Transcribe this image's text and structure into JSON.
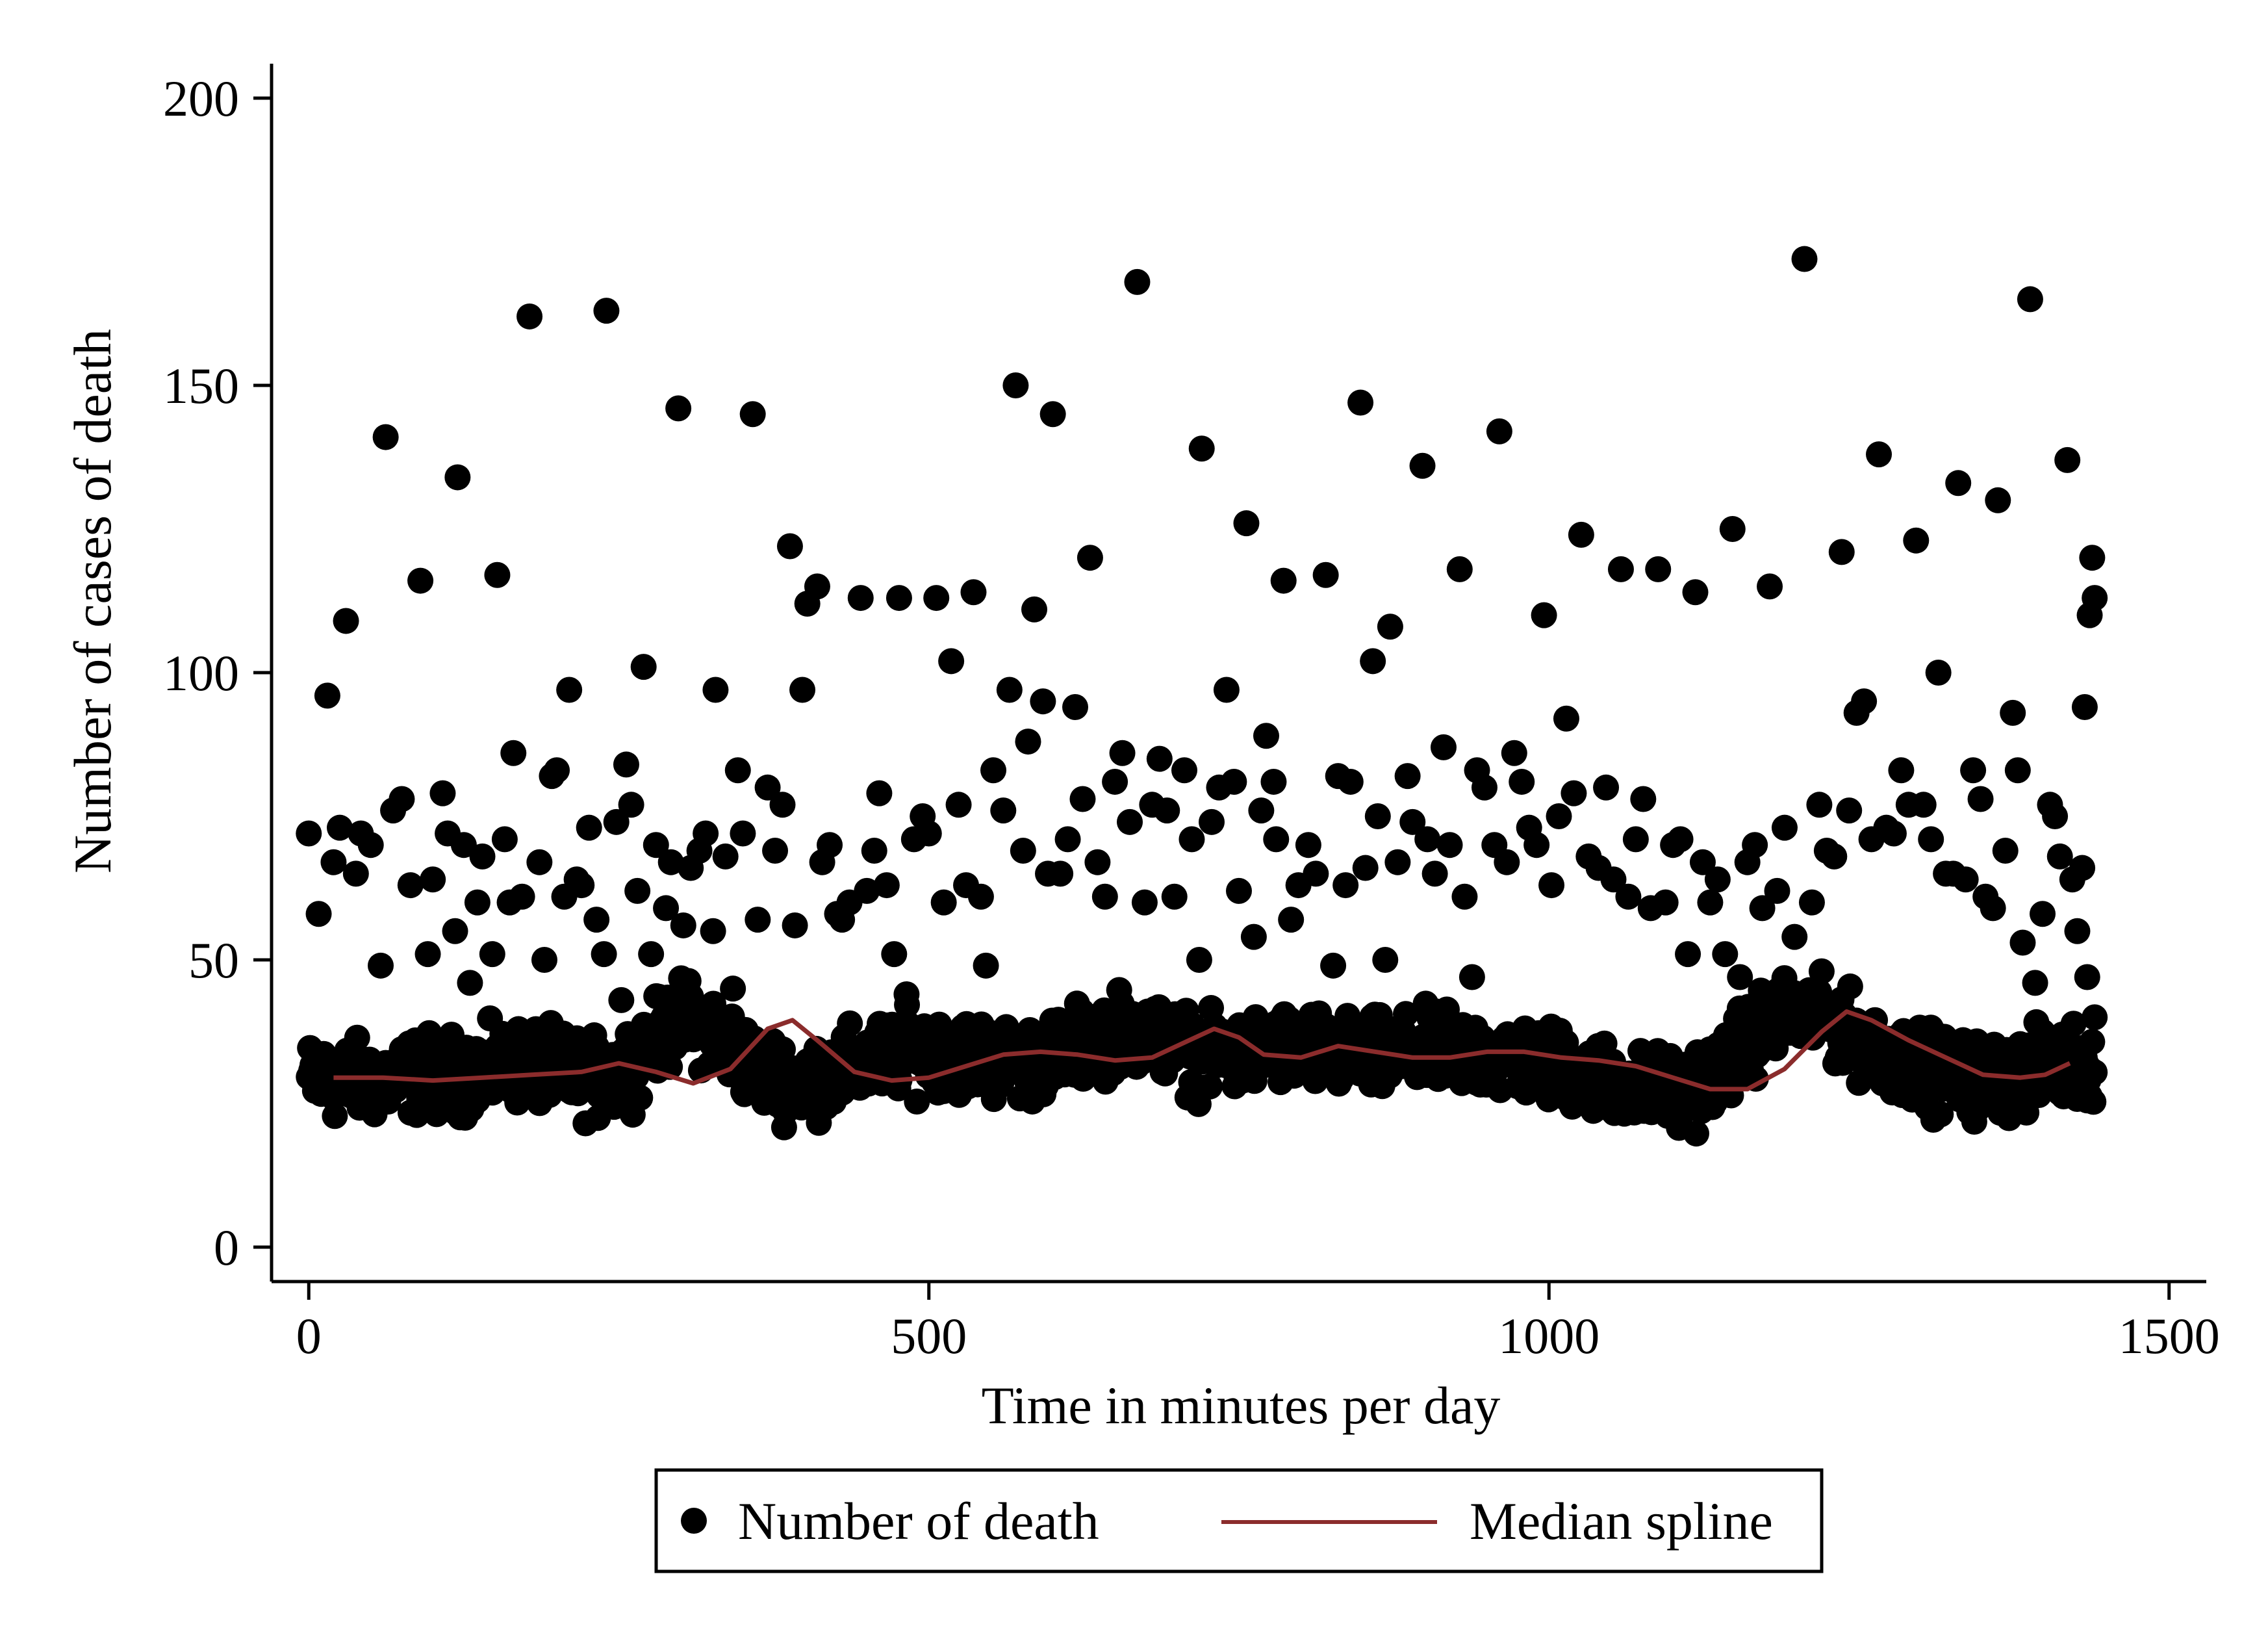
{
  "chart_data": {
    "type": "scatter",
    "title": "",
    "xlabel": "Time in minutes per day",
    "ylabel": "Number of cases of death",
    "xlim": [
      -30,
      1530
    ],
    "ylim": [
      -6,
      206
    ],
    "x_ticks": [
      0,
      500,
      1000,
      1500
    ],
    "x_tick_labels": [
      "0",
      "500",
      "1000",
      "1500"
    ],
    "y_ticks": [
      0,
      50,
      100,
      150,
      200
    ],
    "y_tick_labels": [
      "0",
      "50",
      "100",
      "150",
      "200"
    ],
    "grid": false,
    "legend": {
      "placement": "bottom-center",
      "entries": [
        "Number of death",
        "Median spline"
      ]
    },
    "series": [
      {
        "name": "Number of death",
        "kind": "scatter",
        "color": "#000000",
        "band": {
          "x_start": 0,
          "x_end": 1440,
          "median_y": [
            29,
            29,
            29,
            30,
            30,
            31,
            32,
            30,
            29,
            34,
            40,
            37,
            31,
            29,
            30,
            32,
            34,
            34,
            33,
            32,
            33,
            36,
            38,
            36,
            33,
            33,
            35,
            34,
            33,
            33,
            34,
            34,
            33,
            32,
            31,
            29,
            27,
            27,
            31,
            38,
            41,
            39,
            35,
            32,
            30,
            29,
            30,
            32,
            32
          ],
          "low_y": 15,
          "high_y": 48,
          "count": 1440
        },
        "outliers": [
          [
            0,
            72
          ],
          [
            8,
            58
          ],
          [
            15,
            96
          ],
          [
            20,
            67
          ],
          [
            25,
            73
          ],
          [
            30,
            109
          ],
          [
            38,
            65
          ],
          [
            42,
            72
          ],
          [
            50,
            70
          ],
          [
            58,
            49
          ],
          [
            62,
            141
          ],
          [
            68,
            76
          ],
          [
            75,
            78
          ],
          [
            82,
            63
          ],
          [
            90,
            116
          ],
          [
            96,
            51
          ],
          [
            100,
            64
          ],
          [
            108,
            79
          ],
          [
            112,
            72
          ],
          [
            118,
            55
          ],
          [
            120,
            134
          ],
          [
            125,
            70
          ],
          [
            130,
            46
          ],
          [
            136,
            60
          ],
          [
            140,
            68
          ],
          [
            148,
            51
          ],
          [
            152,
            117
          ],
          [
            158,
            71
          ],
          [
            162,
            60
          ],
          [
            165,
            86
          ],
          [
            172,
            61
          ],
          [
            178,
            162
          ],
          [
            186,
            67
          ],
          [
            190,
            50
          ],
          [
            196,
            82
          ],
          [
            200,
            83
          ],
          [
            206,
            61
          ],
          [
            210,
            97
          ],
          [
            216,
            64
          ],
          [
            220,
            63
          ],
          [
            226,
            73
          ],
          [
            232,
            57
          ],
          [
            238,
            51
          ],
          [
            240,
            163
          ],
          [
            248,
            74
          ],
          [
            252,
            43
          ],
          [
            256,
            84
          ],
          [
            260,
            77
          ],
          [
            265,
            62
          ],
          [
            270,
            101
          ],
          [
            276,
            51
          ],
          [
            280,
            70
          ],
          [
            288,
            59
          ],
          [
            292,
            67
          ],
          [
            298,
            146
          ],
          [
            302,
            56
          ],
          [
            308,
            66
          ],
          [
            315,
            69
          ],
          [
            320,
            72
          ],
          [
            326,
            55
          ],
          [
            328,
            97
          ],
          [
            336,
            68
          ],
          [
            342,
            45
          ],
          [
            346,
            83
          ],
          [
            350,
            72
          ],
          [
            358,
            145
          ],
          [
            362,
            57
          ],
          [
            370,
            80
          ],
          [
            376,
            69
          ],
          [
            382,
            77
          ],
          [
            388,
            122
          ],
          [
            392,
            56
          ],
          [
            398,
            97
          ],
          [
            402,
            112
          ],
          [
            410,
            115
          ],
          [
            414,
            67
          ],
          [
            420,
            70
          ],
          [
            426,
            58
          ],
          [
            430,
            57
          ],
          [
            436,
            60
          ],
          [
            445,
            113
          ],
          [
            450,
            62
          ],
          [
            456,
            69
          ],
          [
            460,
            79
          ],
          [
            466,
            63
          ],
          [
            472,
            51
          ],
          [
            476,
            113
          ],
          [
            482,
            44
          ],
          [
            488,
            71
          ],
          [
            495,
            75
          ],
          [
            500,
            72
          ],
          [
            506,
            113
          ],
          [
            512,
            60
          ],
          [
            518,
            102
          ],
          [
            524,
            77
          ],
          [
            530,
            63
          ],
          [
            536,
            114
          ],
          [
            542,
            61
          ],
          [
            546,
            49
          ],
          [
            552,
            83
          ],
          [
            560,
            76
          ],
          [
            565,
            97
          ],
          [
            570,
            150
          ],
          [
            576,
            69
          ],
          [
            580,
            88
          ],
          [
            585,
            111
          ],
          [
            592,
            95
          ],
          [
            596,
            65
          ],
          [
            600,
            145
          ],
          [
            606,
            65
          ],
          [
            612,
            71
          ],
          [
            618,
            94
          ],
          [
            624,
            78
          ],
          [
            630,
            120
          ],
          [
            636,
            67
          ],
          [
            642,
            61
          ],
          [
            650,
            81
          ],
          [
            656,
            86
          ],
          [
            662,
            74
          ],
          [
            668,
            168
          ],
          [
            674,
            60
          ],
          [
            680,
            77
          ],
          [
            686,
            85
          ],
          [
            692,
            76
          ],
          [
            698,
            61
          ],
          [
            706,
            83
          ],
          [
            712,
            71
          ],
          [
            718,
            50
          ],
          [
            720,
            139
          ],
          [
            728,
            74
          ],
          [
            734,
            80
          ],
          [
            740,
            97
          ],
          [
            746,
            81
          ],
          [
            750,
            62
          ],
          [
            756,
            126
          ],
          [
            762,
            54
          ],
          [
            768,
            76
          ],
          [
            772,
            89
          ],
          [
            778,
            81
          ],
          [
            780,
            71
          ],
          [
            786,
            116
          ],
          [
            792,
            57
          ],
          [
            798,
            63
          ],
          [
            806,
            70
          ],
          [
            812,
            65
          ],
          [
            820,
            117
          ],
          [
            826,
            49
          ],
          [
            830,
            82
          ],
          [
            836,
            63
          ],
          [
            840,
            81
          ],
          [
            848,
            147
          ],
          [
            852,
            66
          ],
          [
            858,
            102
          ],
          [
            862,
            75
          ],
          [
            868,
            50
          ],
          [
            872,
            108
          ],
          [
            878,
            67
          ],
          [
            886,
            82
          ],
          [
            890,
            74
          ],
          [
            898,
            136
          ],
          [
            902,
            71
          ],
          [
            908,
            65
          ],
          [
            915,
            87
          ],
          [
            920,
            70
          ],
          [
            928,
            118
          ],
          [
            932,
            61
          ],
          [
            938,
            47
          ],
          [
            942,
            83
          ],
          [
            948,
            80
          ],
          [
            956,
            70
          ],
          [
            960,
            142
          ],
          [
            966,
            67
          ],
          [
            972,
            86
          ],
          [
            978,
            81
          ],
          [
            984,
            73
          ],
          [
            990,
            70
          ],
          [
            996,
            110
          ],
          [
            1002,
            63
          ],
          [
            1008,
            75
          ],
          [
            1014,
            92
          ],
          [
            1020,
            79
          ],
          [
            1026,
            124
          ],
          [
            1032,
            68
          ],
          [
            1040,
            66
          ],
          [
            1046,
            80
          ],
          [
            1052,
            64
          ],
          [
            1058,
            118
          ],
          [
            1064,
            61
          ],
          [
            1070,
            71
          ],
          [
            1076,
            78
          ],
          [
            1082,
            59
          ],
          [
            1088,
            118
          ],
          [
            1094,
            60
          ],
          [
            1100,
            70
          ],
          [
            1106,
            71
          ],
          [
            1112,
            51
          ],
          [
            1118,
            114
          ],
          [
            1124,
            67
          ],
          [
            1130,
            60
          ],
          [
            1136,
            64
          ],
          [
            1142,
            51
          ],
          [
            1148,
            125
          ],
          [
            1154,
            47
          ],
          [
            1160,
            67
          ],
          [
            1166,
            70
          ],
          [
            1172,
            59
          ],
          [
            1178,
            115
          ],
          [
            1184,
            62
          ],
          [
            1190,
            73
          ],
          [
            1198,
            54
          ],
          [
            1206,
            172
          ],
          [
            1212,
            60
          ],
          [
            1218,
            77
          ],
          [
            1224,
            69
          ],
          [
            1230,
            68
          ],
          [
            1236,
            121
          ],
          [
            1242,
            76
          ],
          [
            1248,
            93
          ],
          [
            1254,
            95
          ],
          [
            1260,
            71
          ],
          [
            1266,
            138
          ],
          [
            1272,
            73
          ],
          [
            1278,
            72
          ],
          [
            1284,
            83
          ],
          [
            1290,
            77
          ],
          [
            1296,
            123
          ],
          [
            1302,
            77
          ],
          [
            1308,
            71
          ],
          [
            1314,
            100
          ],
          [
            1320,
            65
          ],
          [
            1326,
            65
          ],
          [
            1330,
            133
          ],
          [
            1336,
            64
          ],
          [
            1342,
            83
          ],
          [
            1348,
            78
          ],
          [
            1352,
            61
          ],
          [
            1358,
            59
          ],
          [
            1362,
            130
          ],
          [
            1368,
            69
          ],
          [
            1374,
            93
          ],
          [
            1378,
            83
          ],
          [
            1382,
            53
          ],
          [
            1388,
            165
          ],
          [
            1392,
            46
          ],
          [
            1398,
            58
          ],
          [
            1404,
            77
          ],
          [
            1408,
            75
          ],
          [
            1412,
            68
          ],
          [
            1418,
            137
          ],
          [
            1422,
            64
          ],
          [
            1426,
            55
          ],
          [
            1430,
            66
          ],
          [
            1432,
            94
          ],
          [
            1434,
            47
          ],
          [
            1436,
            110
          ],
          [
            1438,
            120
          ],
          [
            1440,
            113
          ],
          [
            1440,
            40
          ]
        ]
      },
      {
        "name": "Median spline",
        "kind": "line",
        "color": "#8b2c2c",
        "x": [
          20,
          60,
          100,
          140,
          180,
          220,
          250,
          280,
          310,
          340,
          370,
          390,
          410,
          440,
          470,
          500,
          530,
          560,
          590,
          620,
          650,
          680,
          710,
          730,
          750,
          770,
          800,
          830,
          860,
          890,
          920,
          950,
          980,
          1010,
          1040,
          1070,
          1100,
          1130,
          1160,
          1190,
          1220,
          1240,
          1260,
          1290,
          1320,
          1350,
          1380,
          1400,
          1420
        ],
        "y": [
          29.5,
          29.5,
          29,
          29.5,
          30,
          30.5,
          32,
          30.5,
          28.5,
          31,
          38,
          39.5,
          36,
          30.5,
          29,
          29.5,
          31.5,
          33.5,
          34,
          33.5,
          32.5,
          33,
          36,
          38,
          36.5,
          33.5,
          33,
          35,
          34,
          33,
          33,
          34,
          34,
          33,
          32.5,
          31.5,
          29.5,
          27.5,
          27.5,
          31,
          37.5,
          41,
          39.5,
          36,
          33,
          30,
          29.5,
          30,
          32
        ]
      }
    ]
  }
}
